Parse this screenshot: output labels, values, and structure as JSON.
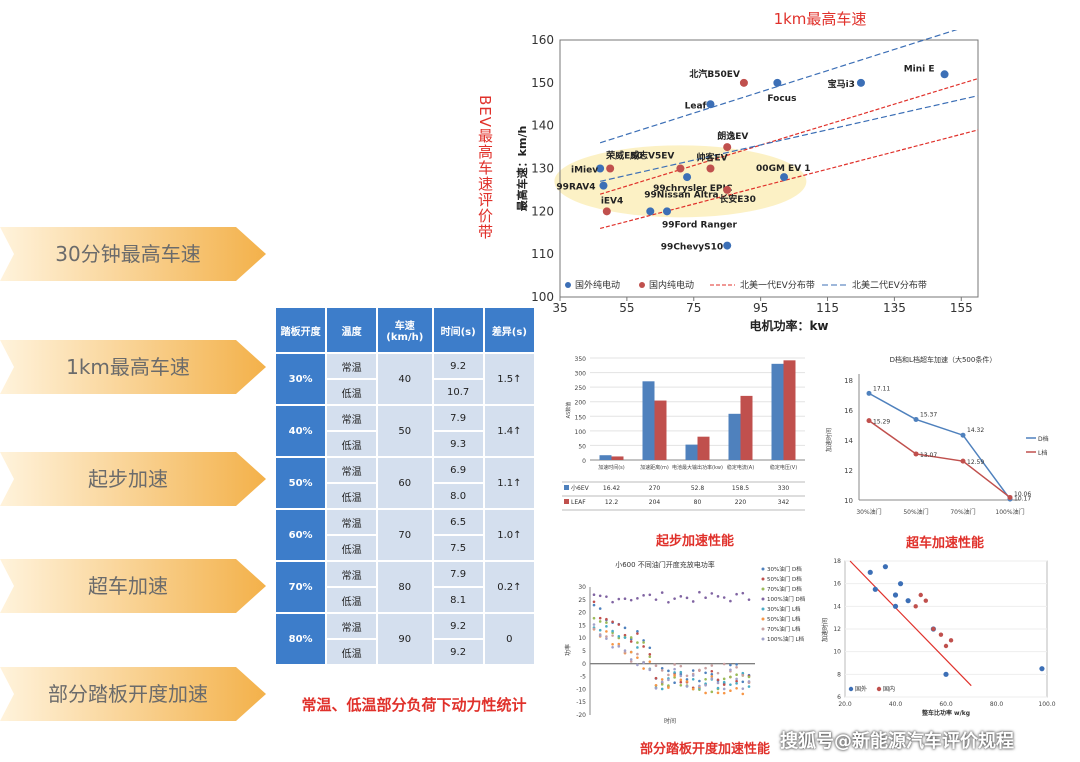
{
  "left_menu": [
    {
      "label": "30分钟最高车速"
    },
    {
      "label": "1km最高车速"
    },
    {
      "label": "起步加速"
    },
    {
      "label": "超车加速"
    },
    {
      "label": "部分踏板开度加速"
    }
  ],
  "colors": {
    "arrow_light": "#fde7c2",
    "arrow_dark": "#f4b553",
    "blue": "#3c6fb6",
    "red": "#c0504d",
    "accent_red": "#e0312b",
    "table_head": "#3d7dca",
    "table_cell": "#d4dfee"
  },
  "main_chart": {
    "title": "1km最高车速",
    "side_label": "BEV最高车速评价带",
    "ylabel": "最高车速：km/h",
    "xlabel": "电机功率：kw",
    "x_ticks": [
      "35",
      "55",
      "75",
      "95",
      "115",
      "135",
      "155"
    ],
    "y_ticks": [
      "100",
      "110",
      "120",
      "130",
      "140",
      "150",
      "160"
    ],
    "legend": [
      "国外纯电动",
      "国内纯电动",
      "北美一代EV分布带",
      "北美二代EV分布带"
    ]
  },
  "chart_data": [
    {
      "type": "scatter",
      "title": "1km最高车速",
      "xlabel": "电机功率：kw",
      "ylabel": "最高车速：km/h",
      "xlim": [
        35,
        160
      ],
      "ylim": [
        100,
        160
      ],
      "grid": false,
      "series": [
        {
          "name": "国外纯电动",
          "color": "#3c6fb6",
          "points": [
            {
              "label": "Mini E",
              "x": 150,
              "y": 152
            },
            {
              "label": "宝马i3",
              "x": 125,
              "y": 150
            },
            {
              "label": "Focus",
              "x": 100,
              "y": 150
            },
            {
              "label": "Leaf",
              "x": 80,
              "y": 145
            },
            {
              "label": "00GM EV 1",
              "x": 102,
              "y": 128
            },
            {
              "label": "iMiev",
              "x": 47,
              "y": 130
            },
            {
              "label": "99RAV4",
              "x": 48,
              "y": 126
            },
            {
              "label": "99Nissan Altra",
              "x": 62,
              "y": 120
            },
            {
              "label": "99Ford Ranger",
              "x": 67,
              "y": 120
            },
            {
              "label": "99chrysler EPIC",
              "x": 73,
              "y": 128
            },
            {
              "label": "99ChevyS10",
              "x": 85,
              "y": 112
            }
          ]
        },
        {
          "name": "国内纯电动",
          "color": "#c0504d",
          "points": [
            {
              "label": "北汽B50EV",
              "x": 90,
              "y": 150
            },
            {
              "label": "朗逸EV",
              "x": 85,
              "y": 135
            },
            {
              "label": "荣威E50",
              "x": 50,
              "y": 130
            },
            {
              "label": "威志V5EV",
              "x": 71,
              "y": 130
            },
            {
              "label": "帅客EV",
              "x": 80,
              "y": 130
            },
            {
              "label": "长安E30",
              "x": 85,
              "y": 125
            },
            {
              "label": "iEV4",
              "x": 49,
              "y": 120
            }
          ]
        }
      ],
      "bands": [
        {
          "name": "北美一代EV分布带",
          "color": "#e0312b",
          "lines": [
            [
              [
                47,
                116
              ],
              [
                160,
                139
              ]
            ],
            [
              [
                47,
                124
              ],
              [
                160,
                151
              ]
            ]
          ]
        },
        {
          "name": "北美二代EV分布带",
          "color": "#3c6fb6",
          "lines": [
            [
              [
                47,
                127
              ],
              [
                160,
                147
              ]
            ],
            [
              [
                47,
                136
              ],
              [
                160,
                168
              ]
            ]
          ]
        }
      ]
    },
    {
      "type": "bar",
      "title": "起步加速性能",
      "categories": [
        "加速时间(s)",
        "加速距离(m)",
        "电池最大输出功率(kw)",
        "稳定电流(A)",
        "稳定电压(V)"
      ],
      "ylim": [
        0,
        350
      ],
      "series": [
        {
          "name": "小6EV",
          "color": "#4f81bd",
          "values": [
            16.42,
            270,
            52.8,
            158.5,
            330
          ]
        },
        {
          "name": "LEAF",
          "color": "#c0504d",
          "values": [
            12.2,
            204,
            80,
            220,
            342
          ]
        }
      ]
    },
    {
      "type": "line",
      "title": "D档和L档超车加速（大500条件）",
      "categories": [
        "30%油门",
        "50%油门",
        "70%油门",
        "100%油门"
      ],
      "ylim": [
        10,
        18
      ],
      "series": [
        {
          "name": "D档",
          "color": "#4f81bd",
          "values": [
            17.11,
            15.37,
            14.32,
            10.06
          ]
        },
        {
          "name": "L档",
          "color": "#c0504d",
          "values": [
            15.29,
            13.07,
            12.59,
            10.17
          ]
        }
      ]
    }
  ],
  "accel_table": {
    "headers": [
      "踏板开度",
      "温度",
      "车速(km/h)",
      "时间(s)",
      "差异(s)"
    ],
    "rows": [
      {
        "pct": "30%",
        "speed": "40",
        "normal_label": "常温",
        "normal_time": "9.2",
        "low_label": "低温",
        "low_time": "10.7",
        "diff": "1.5↑"
      },
      {
        "pct": "40%",
        "speed": "50",
        "normal_label": "常温",
        "normal_time": "7.9",
        "low_label": "低温",
        "low_time": "9.3",
        "diff": "1.4↑"
      },
      {
        "pct": "50%",
        "speed": "60",
        "normal_label": "常温",
        "normal_time": "6.9",
        "low_label": "低温",
        "low_time": "8.0",
        "diff": "1.1↑"
      },
      {
        "pct": "60%",
        "speed": "70",
        "normal_label": "常温",
        "normal_time": "6.5",
        "low_label": "低温",
        "low_time": "7.5",
        "diff": "1.0↑"
      },
      {
        "pct": "70%",
        "speed": "80",
        "normal_label": "常温",
        "normal_time": "7.9",
        "low_label": "低温",
        "low_time": "8.1",
        "diff": "0.2↑"
      },
      {
        "pct": "80%",
        "speed": "90",
        "normal_label": "常温",
        "normal_time": "9.2",
        "low_label": "低温",
        "low_time": "9.2",
        "diff": "0"
      }
    ],
    "caption": "常温、低温部分负荷下动力性统计"
  },
  "bar_chart": {
    "title": "起步加速性能",
    "y_ticks": [
      "0",
      "50",
      "100",
      "150",
      "200",
      "250",
      "300",
      "350"
    ],
    "ylabel": "AS数值"
  },
  "line_chart": {
    "title": "D档和L档超车加速（大500条件）",
    "caption": "超车加速性能",
    "ylabel": "加速时间",
    "y_ticks": [
      "10",
      "12",
      "14",
      "16",
      "18"
    ]
  },
  "pedal_chart": {
    "title": "小600  不同油门开度充放电功率",
    "caption": "部分踏板开度加速性能",
    "xlabel": "时间",
    "ylabel": "功率",
    "y_ticks": [
      "30",
      "25",
      "20",
      "15",
      "10",
      "5",
      "0",
      "-5",
      "-10",
      "-15",
      "-20"
    ],
    "legend": [
      "30%油门 D档",
      "50%油门 D档",
      "70%油门 D档",
      "100%油门 D档",
      "30%油门 L档",
      "50%油门 L档",
      "70%油门 L档",
      "100%油门 L档"
    ]
  },
  "scatter_small": {
    "xlabel": "整车比功率 w/kg",
    "ylabel": "加速时间",
    "x_ticks": [
      "20.0",
      "40.0",
      "60.0",
      "80.0",
      "100.0"
    ],
    "y_ticks": [
      "18",
      "16",
      "14",
      "12",
      "10",
      "8",
      "6"
    ],
    "legend": [
      "国外",
      "国内"
    ]
  },
  "watermark": "搜狐号@新能源汽车评价规程"
}
